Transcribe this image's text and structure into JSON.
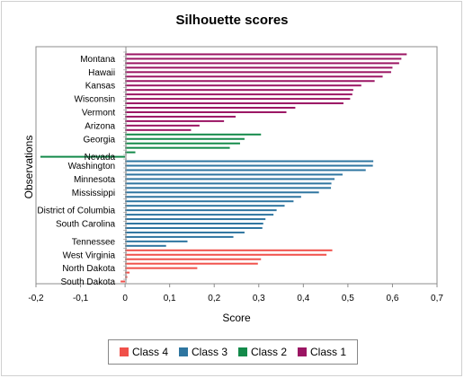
{
  "chart_data": {
    "type": "bar",
    "orientation": "horizontal",
    "title": "Silhouette scores",
    "xlabel": "Score",
    "ylabel": "Observations",
    "xlim": [
      -0.2,
      0.7
    ],
    "xticks": [
      "-0,2",
      "-0,1",
      "0",
      "0,1",
      "0,2",
      "0,3",
      "0,4",
      "0,5",
      "0,6",
      "0,7"
    ],
    "grid": false,
    "legend_position": "bottom",
    "series": [
      {
        "name": "Class 4",
        "color": "#f0504a"
      },
      {
        "name": "Class 3",
        "color": "#2e75a0"
      },
      {
        "name": "Class 2",
        "color": "#138a4a"
      },
      {
        "name": "Class 1",
        "color": "#9b1563"
      }
    ],
    "rows": [
      {
        "label": "",
        "value": 0.632,
        "series": "Class 1"
      },
      {
        "label": "Montana",
        "value": 0.62,
        "series": "Class 1"
      },
      {
        "label": "",
        "value": 0.615,
        "series": "Class 1"
      },
      {
        "label": "",
        "value": 0.6,
        "series": "Class 1"
      },
      {
        "label": "Hawaii",
        "value": 0.597,
        "series": "Class 1"
      },
      {
        "label": "",
        "value": 0.578,
        "series": "Class 1"
      },
      {
        "label": "",
        "value": 0.56,
        "series": "Class 1"
      },
      {
        "label": "Kansas",
        "value": 0.53,
        "series": "Class 1"
      },
      {
        "label": "",
        "value": 0.512,
        "series": "Class 1"
      },
      {
        "label": "",
        "value": 0.51,
        "series": "Class 1"
      },
      {
        "label": "Wisconsin",
        "value": 0.505,
        "series": "Class 1"
      },
      {
        "label": "",
        "value": 0.49,
        "series": "Class 1"
      },
      {
        "label": "",
        "value": 0.382,
        "series": "Class 1"
      },
      {
        "label": "Vermont",
        "value": 0.362,
        "series": "Class 1"
      },
      {
        "label": "",
        "value": 0.248,
        "series": "Class 1"
      },
      {
        "label": "",
        "value": 0.222,
        "series": "Class 1"
      },
      {
        "label": "Arizona",
        "value": 0.167,
        "series": "Class 1"
      },
      {
        "label": "",
        "value": 0.148,
        "series": "Class 1"
      },
      {
        "label": "",
        "value": 0.305,
        "series": "Class 2"
      },
      {
        "label": "Georgia",
        "value": 0.268,
        "series": "Class 2"
      },
      {
        "label": "",
        "value": 0.258,
        "series": "Class 2"
      },
      {
        "label": "",
        "value": 0.235,
        "series": "Class 2"
      },
      {
        "label": "",
        "value": 0.023,
        "series": "Class 2"
      },
      {
        "label": "Nevada",
        "value": -0.19,
        "series": "Class 2"
      },
      {
        "label": "",
        "value": 0.557,
        "series": "Class 3"
      },
      {
        "label": "Washington",
        "value": 0.556,
        "series": "Class 3"
      },
      {
        "label": "",
        "value": 0.54,
        "series": "Class 3"
      },
      {
        "label": "",
        "value": 0.488,
        "series": "Class 3"
      },
      {
        "label": "Minnesota",
        "value": 0.47,
        "series": "Class 3"
      },
      {
        "label": "",
        "value": 0.463,
        "series": "Class 3"
      },
      {
        "label": "",
        "value": 0.462,
        "series": "Class 3"
      },
      {
        "label": "Mississippi",
        "value": 0.435,
        "series": "Class 3"
      },
      {
        "label": "",
        "value": 0.395,
        "series": "Class 3"
      },
      {
        "label": "",
        "value": 0.378,
        "series": "Class 3"
      },
      {
        "label": "",
        "value": 0.358,
        "series": "Class 3"
      },
      {
        "label": "District of Columbia",
        "value": 0.34,
        "series": "Class 3"
      },
      {
        "label": "",
        "value": 0.333,
        "series": "Class 3"
      },
      {
        "label": "",
        "value": 0.315,
        "series": "Class 3"
      },
      {
        "label": "South Carolina",
        "value": 0.31,
        "series": "Class 3"
      },
      {
        "label": "",
        "value": 0.308,
        "series": "Class 3"
      },
      {
        "label": "",
        "value": 0.268,
        "series": "Class 3"
      },
      {
        "label": "",
        "value": 0.243,
        "series": "Class 3"
      },
      {
        "label": "Tennessee",
        "value": 0.14,
        "series": "Class 3"
      },
      {
        "label": "",
        "value": 0.092,
        "series": "Class 3"
      },
      {
        "label": "",
        "value": 0.465,
        "series": "Class 4"
      },
      {
        "label": "West Virginia",
        "value": 0.452,
        "series": "Class 4"
      },
      {
        "label": "",
        "value": 0.305,
        "series": "Class 4"
      },
      {
        "label": "",
        "value": 0.298,
        "series": "Class 4"
      },
      {
        "label": "North Dakota",
        "value": 0.162,
        "series": "Class 4"
      },
      {
        "label": "",
        "value": 0.01,
        "series": "Class 4"
      },
      {
        "label": "",
        "value": 0.005,
        "series": "Class 4"
      },
      {
        "label": "South Dakota",
        "value": -0.01,
        "series": "Class 4"
      }
    ]
  }
}
